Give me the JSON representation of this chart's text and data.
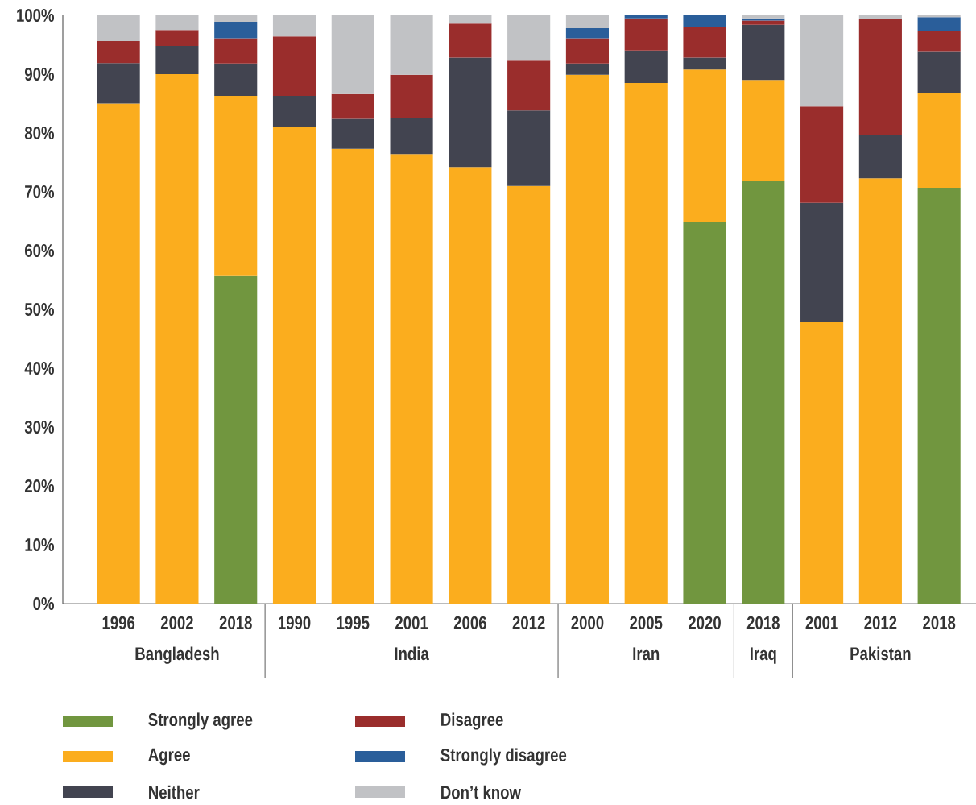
{
  "chart_data": {
    "type": "bar",
    "stacked": true,
    "categories": [
      "1996",
      "2002",
      "2018",
      "1990",
      "1995",
      "2001",
      "2006",
      "2012",
      "2000",
      "2005",
      "2020",
      "2018",
      "2001",
      "2012",
      "2018"
    ],
    "series": [
      {
        "name": "Strongly agree",
        "color": "#71963f",
        "values": [
          null,
          null,
          55.8,
          null,
          null,
          null,
          null,
          null,
          null,
          null,
          64.8,
          71.8,
          null,
          null,
          70.7
        ]
      },
      {
        "name": "Agree",
        "color": "#fbad1e",
        "values": [
          85,
          90,
          30.5,
          81,
          77.3,
          76.4,
          74.2,
          71,
          89.9,
          88.5,
          26,
          17.2,
          47.8,
          72.3,
          16.1
        ]
      },
      {
        "name": "Neither",
        "color": "#424450",
        "values": [
          6.9,
          4.8,
          5.5,
          5.3,
          5.1,
          6.1,
          18.6,
          12.8,
          1.9,
          5.5,
          2,
          9.4,
          20.3,
          7.4,
          7.1
        ]
      },
      {
        "name": "Disagree",
        "color": "#9a2d2c",
        "values": [
          3.7,
          2.7,
          4.3,
          10.1,
          4.2,
          7.4,
          5.8,
          8.5,
          4.3,
          5.5,
          5.2,
          0.7,
          16.4,
          19.6,
          3.4
        ]
      },
      {
        "name": "Strongly disagree",
        "color": "#2a5e9a",
        "values": [
          null,
          null,
          2.8,
          null,
          null,
          null,
          null,
          null,
          1.7,
          0.5,
          2,
          0.4,
          null,
          null,
          2.4
        ]
      },
      {
        "name": "Don’t know",
        "color": "#c1c2c5",
        "values": [
          4.4,
          2.5,
          1.1,
          3.6,
          13.4,
          10.1,
          1.4,
          7.7,
          2.2,
          null,
          null,
          0.5,
          15.5,
          0.7,
          0.3
        ]
      }
    ],
    "ylim": [
      0,
      100
    ],
    "yticks": [
      {
        "value": 0,
        "label": "0%"
      },
      {
        "value": 10,
        "label": "10%"
      },
      {
        "value": 20,
        "label": "20%"
      },
      {
        "value": 30,
        "label": "30%"
      },
      {
        "value": 40,
        "label": "40%"
      },
      {
        "value": 50,
        "label": "50%"
      },
      {
        "value": 60,
        "label": "60%"
      },
      {
        "value": 70,
        "label": "70%"
      },
      {
        "value": 80,
        "label": "80%"
      },
      {
        "value": 90,
        "label": "90%"
      },
      {
        "value": 100,
        "label": "100%"
      }
    ],
    "annotations": [
      "Bangladesh",
      "India",
      "Iran",
      "Iraq",
      "Pakistan"
    ],
    "grid": false,
    "legend": "bottom"
  }
}
